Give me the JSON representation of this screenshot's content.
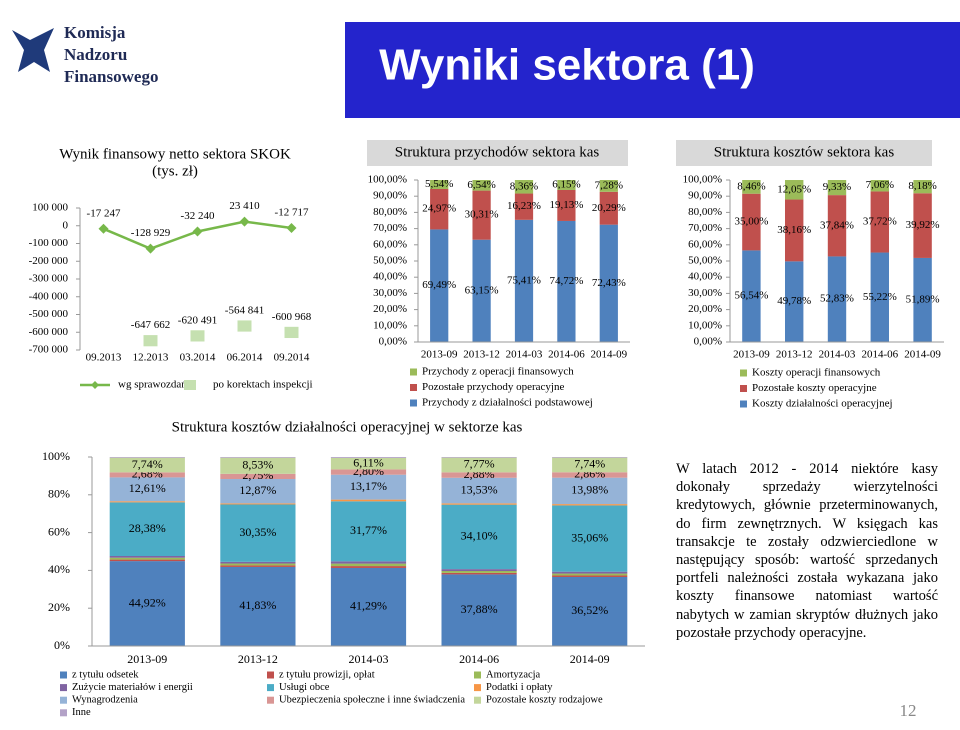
{
  "header": {
    "logo": [
      "Komisja",
      "Nadzoru",
      "Finansowego"
    ],
    "title": "Wyniki sektora (1)"
  },
  "chart_data": [
    {
      "type": "line",
      "title": "Wynik finansowy netto sektora SKOK",
      "subtitle": "(tys. zł)",
      "categories": [
        "09.2013",
        "12.2013",
        "03.2014",
        "06.2014",
        "09.2014"
      ],
      "series": [
        {
          "name": "wg sprawozdań",
          "color": "#77b84a",
          "marker": "diamond",
          "line": true,
          "values": [
            -17247,
            -128929,
            -32240,
            23410,
            -12717
          ],
          "value_labels": [
            "-17 247",
            "-128 929",
            "-32 240",
            "23 410",
            "-12 717"
          ]
        },
        {
          "name": "po korektach inspekcji",
          "color": "#c5e0b0",
          "marker": "square",
          "line": false,
          "values": [
            null,
            -647662,
            -620491,
            -564841,
            -600968
          ],
          "value_labels": [
            null,
            "-647 662",
            "-620 491",
            "-564 841",
            "-600 968"
          ]
        }
      ],
      "ylim": [
        -700000,
        100000
      ],
      "yticks": [
        {
          "value": 100000,
          "label": "100 000"
        },
        0,
        {
          "value": -100000,
          "label": "-100 000"
        },
        {
          "value": -200000,
          "label": "-200 000"
        },
        {
          "value": -300000,
          "label": "-300 000"
        },
        {
          "value": -400000,
          "label": "-400 000"
        },
        {
          "value": -500000,
          "label": "-500 000"
        },
        {
          "value": -600000,
          "label": "-600 000"
        },
        {
          "value": -700000,
          "label": "-700 000"
        }
      ],
      "grid": false
    },
    {
      "type": "stacked_bar",
      "title": "Struktura przychodów sektora kas",
      "categories": [
        "2013-09",
        "2013-12",
        "2014-03",
        "2014-06",
        "2014-09"
      ],
      "series": [
        {
          "name": "Przychody z działalności podstawowej",
          "color": "#4f81bd",
          "values": [
            69.49,
            63.15,
            75.41,
            74.72,
            72.43
          ],
          "value_labels": [
            "69,49%",
            "63,15%",
            "75,41%",
            "74,72%",
            "72,43%"
          ]
        },
        {
          "name": "Pozostałe przychody operacyjne",
          "color": "#c0504d",
          "values": [
            24.97,
            30.31,
            16.23,
            19.13,
            20.29
          ],
          "value_labels": [
            "24,97%",
            "30,31%",
            "16,23%",
            "19,13%",
            "20,29%"
          ]
        },
        {
          "name": "Przychody z operacji finansowych",
          "color": "#9bbb59",
          "values": [
            5.54,
            6.54,
            8.36,
            6.15,
            7.28
          ],
          "value_labels": [
            "5,54%",
            "6,54%",
            "8,36%",
            "6,15%",
            "7,28%"
          ]
        }
      ],
      "ylim": [
        0,
        100
      ],
      "yticks": [
        {
          "value": 0,
          "label": "0,00%"
        },
        {
          "value": 10,
          "label": "10,00%"
        },
        {
          "value": 20,
          "label": "20,00%"
        },
        {
          "value": 30,
          "label": "30,00%"
        },
        {
          "value": 40,
          "label": "40,00%"
        },
        {
          "value": 50,
          "label": "50,00%"
        },
        {
          "value": 60,
          "label": "60,00%"
        },
        {
          "value": 70,
          "label": "70,00%"
        },
        {
          "value": 80,
          "label": "80,00%"
        },
        {
          "value": 90,
          "label": "90,00%"
        },
        {
          "value": 100,
          "label": "100,00%"
        }
      ],
      "grid": false,
      "legend": "bottom"
    },
    {
      "type": "stacked_bar",
      "title": "Struktura kosztów sektora kas",
      "categories": [
        "2013-09",
        "2013-12",
        "2014-03",
        "2014-06",
        "2014-09"
      ],
      "series": [
        {
          "name": "Koszty działalności operacyjnej",
          "color": "#4f81bd",
          "values": [
            56.54,
            49.78,
            52.83,
            55.22,
            51.89
          ],
          "value_labels": [
            "56,54%",
            "49,78%",
            "52,83%",
            "55,22%",
            "51,89%"
          ]
        },
        {
          "name": "Pozostałe koszty operacyjne",
          "color": "#c0504d",
          "values": [
            35.0,
            38.16,
            37.84,
            37.72,
            39.92
          ],
          "value_labels": [
            "35,00%",
            "38,16%",
            "37,84%",
            "37,72%",
            "39,92%"
          ]
        },
        {
          "name": "Koszty operacji finansowych",
          "color": "#9bbb59",
          "values": [
            8.46,
            12.05,
            9.33,
            7.06,
            8.18
          ],
          "value_labels": [
            "8,46%",
            "12,05%",
            "9,33%",
            "7,06%",
            "8,18%"
          ]
        }
      ],
      "ylim": [
        0,
        100
      ],
      "yticks": [
        {
          "value": 0,
          "label": "0,00%"
        },
        {
          "value": 10,
          "label": "10,00%"
        },
        {
          "value": 20,
          "label": "20,00%"
        },
        {
          "value": 30,
          "label": "30,00%"
        },
        {
          "value": 40,
          "label": "40,00%"
        },
        {
          "value": 50,
          "label": "50,00%"
        },
        {
          "value": 60,
          "label": "60,00%"
        },
        {
          "value": 70,
          "label": "70,00%"
        },
        {
          "value": 80,
          "label": "80,00%"
        },
        {
          "value": 90,
          "label": "90,00%"
        },
        {
          "value": 100,
          "label": "100,00%"
        }
      ],
      "grid": false,
      "legend": "bottom"
    },
    {
      "type": "stacked_bar",
      "title": "Struktura kosztów działalności operacyjnej w sektorze kas",
      "categories": [
        "2013-09",
        "2013-12",
        "2014-03",
        "2014-06",
        "2014-09"
      ],
      "series": [
        {
          "name": "z tytułu odsetek",
          "color": "#4f81bd",
          "values": [
            44.92,
            41.83,
            41.29,
            37.88,
            36.52
          ],
          "value_labels": [
            "44,92%",
            "41,83%",
            "41,29%",
            "37,88%",
            "36,52%"
          ]
        },
        {
          "name": "z tytułu prowizji, opłat",
          "color": "#c0504d",
          "values": [
            0.8,
            0.8,
            1.0,
            0.8,
            0.8
          ]
        },
        {
          "name": "Amortyzacja",
          "color": "#9bbb59",
          "values": [
            1.0,
            1.0,
            1.3,
            1.0,
            1.0
          ]
        },
        {
          "name": "Zużycie materiałów i energii",
          "color": "#8064a2",
          "values": [
            0.9,
            0.9,
            1.2,
            1.0,
            1.0
          ]
        },
        {
          "name": "Usługi obce",
          "color": "#4bacc6",
          "values": [
            28.38,
            30.35,
            31.77,
            34.1,
            35.06
          ],
          "value_labels": [
            "28,38%",
            "30,35%",
            "31,77%",
            "34,10%",
            "35,06%"
          ]
        },
        {
          "name": "Podatki i opłaty",
          "color": "#f79646",
          "values": [
            0.6,
            0.6,
            0.9,
            0.7,
            0.7
          ]
        },
        {
          "name": "Wynagrodzenia",
          "color": "#95b3d7",
          "values": [
            12.61,
            12.87,
            13.17,
            13.53,
            13.98
          ],
          "value_labels": [
            "12,61%",
            "12,87%",
            "13,17%",
            "13,53%",
            "13,98%"
          ]
        },
        {
          "name": "Ubezpieczenia społeczne i inne świadczenia",
          "color": "#d99694",
          "values": [
            2.68,
            2.75,
            2.8,
            2.88,
            2.86
          ],
          "value_labels": [
            "2,68%",
            "2,75%",
            "2,80%",
            "2,88%",
            "2,86%"
          ]
        },
        {
          "name": "Pozostałe koszty rodzajowe",
          "color": "#c3d69b",
          "values": [
            7.74,
            8.53,
            6.11,
            7.77,
            7.74
          ],
          "value_labels": [
            "7,74%",
            "8,53%",
            "6,11%",
            "7,77%",
            "7,74%"
          ]
        },
        {
          "name": "Inne",
          "color": "#b3a2c7",
          "values": [
            0.37,
            0.37,
            0.46,
            0.34,
            0.34
          ]
        }
      ],
      "ylim": [
        0,
        100
      ],
      "yticks": [
        {
          "value": 0,
          "label": "0%"
        },
        {
          "value": 20,
          "label": "20%"
        },
        {
          "value": 40,
          "label": "40%"
        },
        {
          "value": 60,
          "label": "60%"
        },
        {
          "value": 80,
          "label": "80%"
        },
        {
          "value": 100,
          "label": "100%"
        }
      ],
      "grid": false,
      "legend": "bottom"
    }
  ],
  "note": "W latach 2012 - 2014 niektóre kasy dokonały sprzedaży wierzytelności kredytowych, głównie przeterminowanych, do firm zewnętrznych. W księgach kas transakcje te zostały odzwierciedlone w następujący sposób: wartość sprzedanych portfeli należności została wykazana jako koszty finansowe natomiast wartość nabytych w zamian skryptów dłużnych jako pozostałe przychody operacyjne.",
  "page_number": "12"
}
